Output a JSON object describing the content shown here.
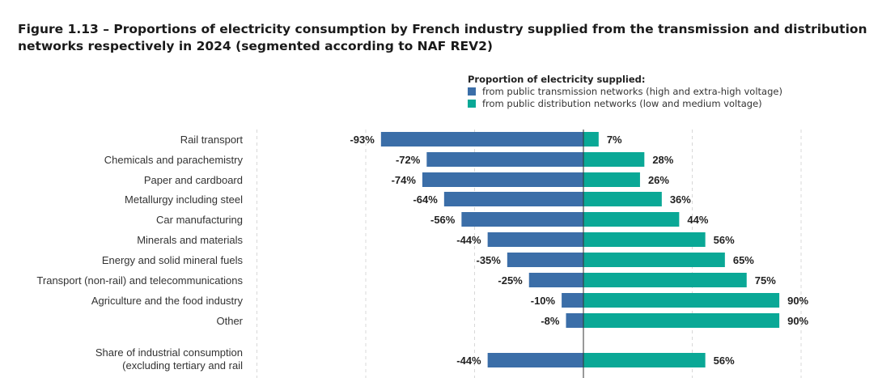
{
  "chart_data": {
    "type": "bar",
    "orientation": "horizontal-diverging",
    "title": "Figure 1.13 – Proportions of electricity consumption by French industry supplied from the transmission and distribution networks respectively in 2024 (segmented according to NAF REV2)",
    "legend_title": "Proportion of electricity supplied:",
    "legend_placement": "top-right",
    "categories": [
      "Rail transport",
      "Chemicals and parachemistry",
      "Paper and cardboard",
      "Metallurgy including steel",
      "Car manufacturing",
      "Minerals and materials",
      "Energy and solid mineral fuels",
      "Transport (non-rail) and telecommunications",
      "Agriculture and the food industry",
      "Other",
      "Share of industrial consumption (excluding tertiary and rail"
    ],
    "category_lines": [
      [
        "Rail transport"
      ],
      [
        "Chemicals and parachemistry"
      ],
      [
        "Paper and cardboard"
      ],
      [
        "Metallurgy including steel"
      ],
      [
        "Car manufacturing"
      ],
      [
        "Minerals and materials"
      ],
      [
        "Energy and solid mineral fuels"
      ],
      [
        "Transport (non-rail) and telecommunications"
      ],
      [
        "Agriculture and the food industry"
      ],
      [
        "Other"
      ],
      [
        "Share of industrial consumption",
        "(excluding tertiary and rail"
      ]
    ],
    "series": [
      {
        "name": "from public transmission networks (high and extra-high voltage)",
        "color": "#3b6ea8",
        "values": [
          -93,
          -72,
          -74,
          -64,
          -56,
          -44,
          -35,
          -25,
          -10,
          -8,
          -44
        ],
        "labels": [
          "-93%",
          "-72%",
          "-74%",
          "-64%",
          "-56%",
          "-44%",
          "-35%",
          "-25%",
          "-10%",
          "-8%",
          "-44%"
        ]
      },
      {
        "name": "from public distribution networks (low and medium voltage)",
        "color": "#0aa896",
        "values": [
          7,
          28,
          26,
          36,
          44,
          56,
          65,
          75,
          90,
          90,
          56
        ],
        "labels": [
          "7%",
          "28%",
          "26%",
          "36%",
          "44%",
          "56%",
          "65%",
          "75%",
          "90%",
          "90%",
          "56%"
        ]
      }
    ],
    "xlim": [
      -150,
      100
    ],
    "gridlines_x": [
      -150,
      -100,
      -50,
      50,
      100
    ],
    "grid": "vertical dashed"
  }
}
